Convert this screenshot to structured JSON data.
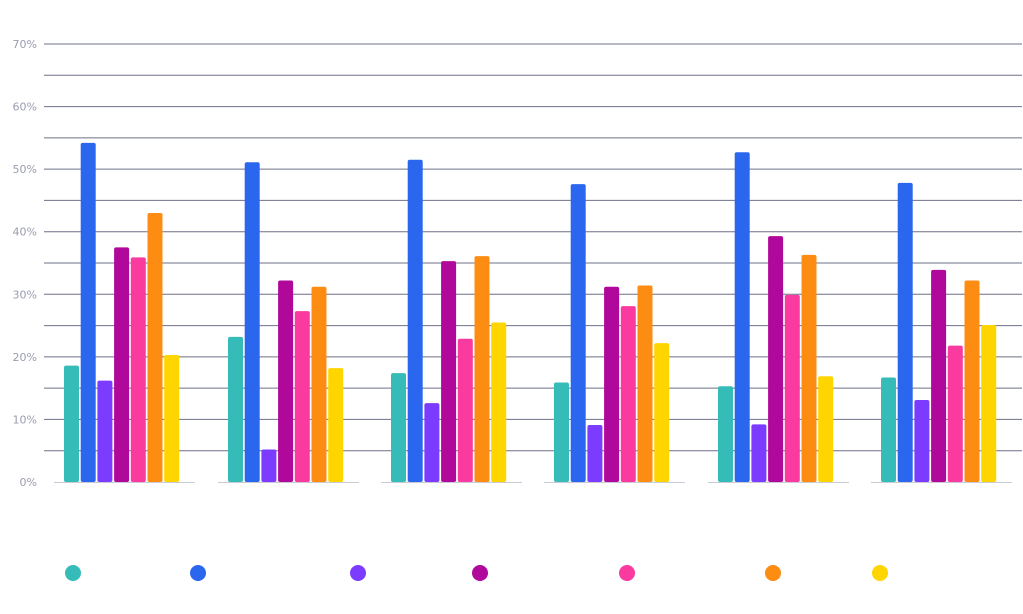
{
  "chart_data": {
    "type": "bar",
    "categories": [
      "",
      "",
      "",
      "",
      "",
      ""
    ],
    "series": [
      {
        "color": "#35bcb8",
        "values": [
          18.6,
          23.2,
          17.4,
          15.9,
          15.3,
          16.7
        ]
      },
      {
        "color": "#2b67ee",
        "values": [
          54.2,
          51.1,
          51.5,
          47.6,
          52.7,
          47.8
        ]
      },
      {
        "color": "#7b3cff",
        "values": [
          16.2,
          5.2,
          12.6,
          9.1,
          9.2,
          13.1
        ]
      },
      {
        "color": "#b0089a",
        "values": [
          37.5,
          32.2,
          35.3,
          31.2,
          39.3,
          33.9
        ]
      },
      {
        "color": "#fb3aa0",
        "values": [
          35.9,
          27.3,
          22.9,
          28.1,
          29.9,
          21.8
        ]
      },
      {
        "color": "#fd8c13",
        "values": [
          43.0,
          31.2,
          36.1,
          31.4,
          36.3,
          32.2
        ]
      },
      {
        "color": "#ffd500",
        "values": [
          20.3,
          18.2,
          25.5,
          22.2,
          16.9,
          25.1
        ]
      }
    ],
    "y_ticks": [
      "0%",
      "10%",
      "20%",
      "30%",
      "40%",
      "50%",
      "60%",
      "70%"
    ],
    "ylim": [
      0,
      70
    ],
    "grid": true,
    "legend_position": "bottom",
    "title": "",
    "xlabel": "",
    "ylabel": ""
  }
}
